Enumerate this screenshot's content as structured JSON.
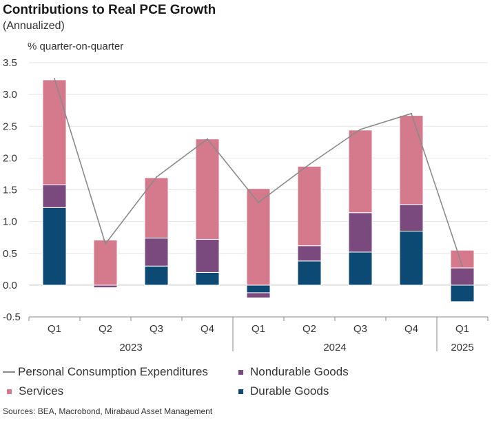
{
  "header": {
    "title": "Contributions to Real PCE Growth",
    "subtitle": "(Annualized)"
  },
  "footer": {
    "source": "Sources: BEA, Macrobond, Mirabaud Asset Management"
  },
  "chart_data": {
    "type": "bar",
    "stacked": true,
    "ylabel": "% quarter-on-quarter",
    "ylim": [
      -0.5,
      3.5
    ],
    "yticks": [
      "3.5",
      "3.0",
      "2.5",
      "2.0",
      "1.5",
      "1.0",
      "0.5",
      "0.0",
      "-0.5"
    ],
    "grid": true,
    "legend_position": "bottom",
    "categories": [
      "Q1",
      "Q2",
      "Q3",
      "Q4",
      "Q1",
      "Q2",
      "Q3",
      "Q4",
      "Q1"
    ],
    "years": [
      {
        "label": "2023",
        "categories": [
          0,
          3
        ]
      },
      {
        "label": "2024",
        "categories": [
          4,
          7
        ]
      },
      {
        "label": "2025",
        "categories": [
          8,
          8
        ]
      }
    ],
    "series": [
      {
        "name": "Durable Goods",
        "kind": "bar",
        "color": "#0c4a74",
        "values": [
          1.22,
          0.0,
          0.3,
          0.2,
          -0.12,
          0.38,
          0.52,
          0.85,
          -0.26
        ]
      },
      {
        "name": "Nondurable Goods",
        "kind": "bar",
        "color": "#7a4a7f",
        "values": [
          0.36,
          -0.04,
          0.44,
          0.52,
          -0.08,
          0.24,
          0.62,
          0.42,
          0.27
        ]
      },
      {
        "name": "Services",
        "kind": "bar",
        "color": "#d57a8c",
        "values": [
          1.65,
          0.71,
          0.95,
          1.58,
          1.52,
          1.25,
          1.3,
          1.4,
          0.28
        ]
      },
      {
        "name": "Personal Consumption Expenditures",
        "kind": "line",
        "color": "#8a8a8a",
        "values": [
          3.25,
          0.65,
          1.7,
          2.3,
          1.3,
          1.9,
          2.45,
          2.7,
          0.3
        ]
      }
    ]
  }
}
